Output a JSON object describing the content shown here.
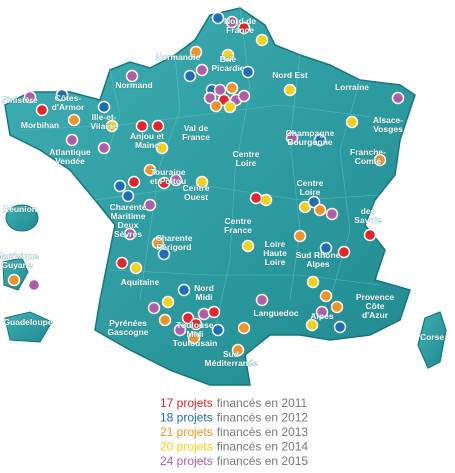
{
  "map": {
    "regions": [
      [
        "Nord de",
        "France"
      ],
      [
        "Normandie"
      ],
      [
        "Normand"
      ],
      [
        "Brie",
        "Picardie"
      ],
      [
        "Nord Est"
      ],
      [
        "Lorraine"
      ],
      [
        "Finistère"
      ],
      [
        "Côtes-",
        "d'Armor"
      ],
      [
        "Ille-et-",
        "Vilaine"
      ],
      [
        "Morbihan"
      ],
      [
        "Alsace-",
        "Vosges"
      ],
      [
        "Champagne",
        "Bourgogne"
      ],
      [
        "Anjou et",
        "Maine"
      ],
      [
        "Val de",
        "France"
      ],
      [
        "Franche-",
        "Comté"
      ],
      [
        "Atlantique",
        "Vendée"
      ],
      [
        "Centre",
        "Loire"
      ],
      [
        "Touraine",
        "et Poitou"
      ],
      [
        "Centre",
        "Ouest"
      ],
      [
        "Centre",
        "Loire"
      ],
      [
        "Charente",
        "Maritime",
        "Deux",
        "Sèvres"
      ],
      [
        "Réunion"
      ],
      [
        "des",
        "Savoie"
      ],
      [
        "Centre",
        "France"
      ],
      [
        "Charente",
        "Périgord"
      ],
      [
        "Loire",
        "Haute",
        "Loire"
      ],
      [
        "Sud Rhône",
        "Alpes"
      ],
      [
        "Martinique",
        "Guyane"
      ],
      [
        "Aquitaine"
      ],
      [
        "Nord",
        "Midi"
      ],
      [
        "Provence",
        "Côte",
        "d'Azur"
      ],
      [
        "Languedoc"
      ],
      [
        "Alpes"
      ],
      [
        "Pyrénées",
        "Gascogne"
      ],
      [
        "Toulouse",
        "Midi",
        "Toulousain"
      ],
      [
        "Guadeloupe"
      ],
      [
        "Sud",
        "Méditerranée"
      ],
      [
        "Corse"
      ]
    ]
  },
  "legend": [
    {
      "count": "17 projets",
      "text": "financés en 2011",
      "color": "#e4262c"
    },
    {
      "count": "18 projets",
      "text": "financés en 2012",
      "color": "#1f6db4"
    },
    {
      "count": "21 projets",
      "text": "financés en 2013",
      "color": "#f39325"
    },
    {
      "count": "20 projets",
      "text": "financés en 2014",
      "color": "#f2d21a"
    },
    {
      "count": "24 projets",
      "text": "financés en 2015",
      "color": "#b15ca8"
    }
  ]
}
